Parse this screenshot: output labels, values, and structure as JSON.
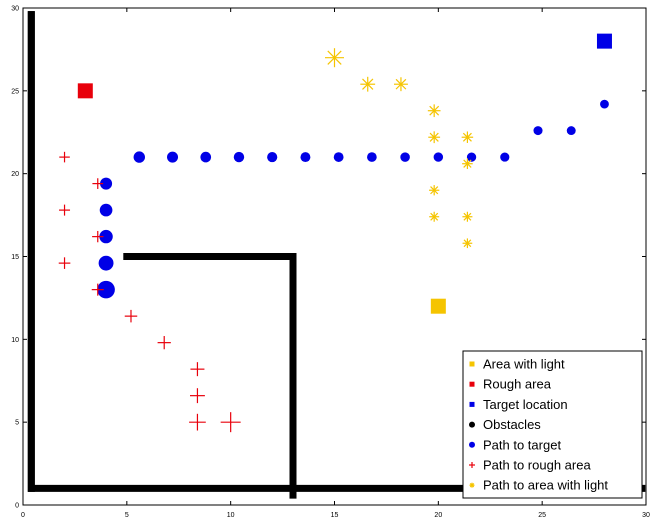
{
  "chart_data": {
    "type": "scatter",
    "title": "",
    "xlabel": "",
    "ylabel": "",
    "xlim": [
      0,
      30
    ],
    "ylim": [
      0,
      30
    ],
    "xticks": [
      0,
      5,
      10,
      15,
      20,
      25,
      30
    ],
    "yticks": [
      0,
      5,
      10,
      15,
      20,
      25,
      30
    ],
    "xtick_labels": [
      "0",
      "5",
      "10",
      "15",
      "20",
      "25",
      "30"
    ],
    "ytick_labels": [
      "0",
      "5",
      "10",
      "15",
      "20",
      "25",
      "30"
    ],
    "grid": false,
    "legend_position": "bottom-right",
    "colors": {
      "light": "#f5c400",
      "rough": "#e8000b",
      "target": "#0000e6",
      "obstacle": "#000000",
      "path_rough": "#e8000b"
    },
    "markers": {
      "area_with_light": {
        "x": 20,
        "y": 12
      },
      "rough_area": {
        "x": 3,
        "y": 25
      },
      "target_location": {
        "x": 28,
        "y": 28
      }
    },
    "obstacles": [
      {
        "points": [
          [
            0.4,
            29.6
          ],
          [
            0.4,
            1
          ],
          [
            29.8,
            1
          ]
        ]
      },
      {
        "points": [
          [
            0.4,
            29.6
          ],
          [
            0.4,
            1
          ]
        ]
      },
      {
        "points": [
          [
            5,
            15
          ],
          [
            13,
            15
          ],
          [
            13,
            0.6
          ]
        ]
      }
    ],
    "path_to_target": [
      {
        "x": 4.0,
        "y": 13.0,
        "size": 1.0
      },
      {
        "x": 4.0,
        "y": 14.6,
        "size": 0.78
      },
      {
        "x": 4.0,
        "y": 16.2,
        "size": 0.66
      },
      {
        "x": 4.0,
        "y": 17.8,
        "size": 0.6
      },
      {
        "x": 4.0,
        "y": 19.4,
        "size": 0.55
      },
      {
        "x": 5.6,
        "y": 21.0,
        "size": 0.5
      },
      {
        "x": 7.2,
        "y": 21.0,
        "size": 0.47
      },
      {
        "x": 8.8,
        "y": 21.0,
        "size": 0.44
      },
      {
        "x": 10.4,
        "y": 21.0,
        "size": 0.42
      },
      {
        "x": 12.0,
        "y": 21.0,
        "size": 0.4
      },
      {
        "x": 13.6,
        "y": 21.0,
        "size": 0.38
      },
      {
        "x": 15.2,
        "y": 21.0,
        "size": 0.37
      },
      {
        "x": 16.8,
        "y": 21.0,
        "size": 0.36
      },
      {
        "x": 18.4,
        "y": 21.0,
        "size": 0.35
      },
      {
        "x": 20.0,
        "y": 21.0,
        "size": 0.34
      },
      {
        "x": 21.6,
        "y": 21.0,
        "size": 0.33
      },
      {
        "x": 23.2,
        "y": 21.0,
        "size": 0.32
      },
      {
        "x": 24.8,
        "y": 22.6,
        "size": 0.31
      },
      {
        "x": 26.4,
        "y": 22.6,
        "size": 0.3
      },
      {
        "x": 28.0,
        "y": 24.2,
        "size": 0.29
      }
    ],
    "path_to_rough_area": [
      {
        "x": 10.0,
        "y": 5.0,
        "size": 1.0
      },
      {
        "x": 8.4,
        "y": 5.0,
        "size": 0.78
      },
      {
        "x": 8.4,
        "y": 6.6,
        "size": 0.66
      },
      {
        "x": 8.4,
        "y": 8.2,
        "size": 0.6
      },
      {
        "x": 6.8,
        "y": 9.8,
        "size": 0.55
      },
      {
        "x": 5.2,
        "y": 11.4,
        "size": 0.5
      },
      {
        "x": 3.6,
        "y": 13.0,
        "size": 0.47
      },
      {
        "x": 2.0,
        "y": 14.6,
        "size": 0.44
      },
      {
        "x": 3.6,
        "y": 16.2,
        "size": 0.42
      },
      {
        "x": 2.0,
        "y": 17.8,
        "size": 0.4
      },
      {
        "x": 3.6,
        "y": 19.4,
        "size": 0.38
      },
      {
        "x": 2.0,
        "y": 21.0,
        "size": 0.37
      }
    ],
    "path_to_area_with_light": [
      {
        "x": 15.0,
        "y": 27.0,
        "size": 1.0
      },
      {
        "x": 16.6,
        "y": 25.4,
        "size": 0.72
      },
      {
        "x": 18.2,
        "y": 25.4,
        "size": 0.66
      },
      {
        "x": 19.8,
        "y": 23.8,
        "size": 0.58
      },
      {
        "x": 19.8,
        "y": 22.2,
        "size": 0.52
      },
      {
        "x": 21.4,
        "y": 22.2,
        "size": 0.5
      },
      {
        "x": 21.4,
        "y": 20.6,
        "size": 0.44
      },
      {
        "x": 19.8,
        "y": 19.0,
        "size": 0.42
      },
      {
        "x": 19.8,
        "y": 17.4,
        "size": 0.4
      },
      {
        "x": 21.4,
        "y": 17.4,
        "size": 0.4
      },
      {
        "x": 21.4,
        "y": 15.8,
        "size": 0.38
      }
    ],
    "legend": [
      {
        "label": "Area with light",
        "symbol": "square",
        "color": "#f5c400"
      },
      {
        "label": "Rough area",
        "symbol": "square",
        "color": "#e8000b"
      },
      {
        "label": "Target location",
        "symbol": "square",
        "color": "#0000e6"
      },
      {
        "label": "Obstacles",
        "symbol": "dot",
        "color": "#000000"
      },
      {
        "label": "Path to target",
        "symbol": "dot",
        "color": "#0000e6"
      },
      {
        "label": "Path to rough area",
        "symbol": "plus",
        "color": "#e8000b"
      },
      {
        "label": "Path to area with light",
        "symbol": "star",
        "color": "#f5c400"
      }
    ]
  }
}
